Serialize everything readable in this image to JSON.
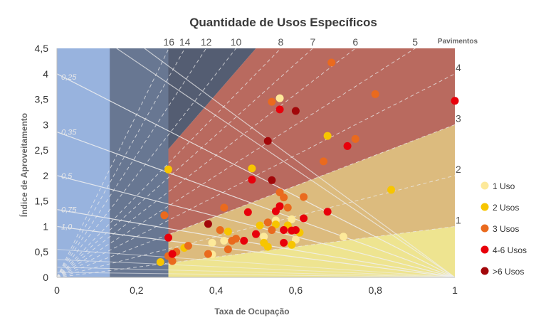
{
  "chart_data": {
    "type": "scatter",
    "title": "Quantidade de Usos Específicos",
    "xlabel": "Taxa de Ocupação",
    "ylabel": "Índice de Aproveitamento",
    "xlim": [
      0,
      1
    ],
    "ylim": [
      0,
      4.5
    ],
    "x_ticks": [
      "0",
      "0,2",
      "0,4",
      "0,6",
      "0,8",
      "1"
    ],
    "y_ticks": [
      "0",
      "0,5",
      "1",
      "1,5",
      "2",
      "2,5",
      "3",
      "3,5",
      "4",
      "4,5"
    ],
    "x_tick_values": [
      0,
      0.2,
      0.4,
      0.6,
      0.8,
      1
    ],
    "y_tick_values": [
      0,
      0.5,
      1,
      1.5,
      2,
      2.5,
      3,
      3.5,
      4,
      4.5
    ],
    "grid": false,
    "legend_position": "right",
    "zones": [
      {
        "x0": 0,
        "x1": 0.133,
        "color": "#98b3de"
      },
      {
        "x0": 0.133,
        "x1": 0.28,
        "color": "#687792"
      }
    ],
    "slope_bands": [
      {
        "from": 0,
        "to": 1,
        "color": "#eee490"
      },
      {
        "from": 1,
        "to": 3,
        "color": "#dcbb7e"
      },
      {
        "from": 3,
        "to": 9,
        "color": "#b96a5f"
      },
      {
        "from": 9,
        "to": 99,
        "color": "#545d72"
      }
    ],
    "pavimentos_title": "Pavimentos",
    "pavimentos_top": [
      {
        "label": "16",
        "value": 16
      },
      {
        "label": "14",
        "value": 14
      },
      {
        "label": "12",
        "value": 12
      },
      {
        "label": "10",
        "value": 10
      },
      {
        "label": "8",
        "value": 8
      },
      {
        "label": "7",
        "value": 7
      },
      {
        "label": "6",
        "value": 6
      },
      {
        "label": "5",
        "value": 5
      }
    ],
    "pavimentos_right": [
      {
        "label": "4",
        "value": 4
      },
      {
        "label": "3",
        "value": 3
      },
      {
        "label": "2",
        "value": 2
      },
      {
        "label": "1",
        "value": 1
      }
    ],
    "dashed_floor_lines": [
      1,
      2,
      3,
      4,
      5,
      6,
      7,
      8,
      10,
      12,
      14,
      16
    ],
    "coeff_lines": [
      {
        "label": "0,25",
        "value": 0.25
      },
      {
        "label": "0,35",
        "value": 0.35
      },
      {
        "label": "0,5",
        "value": 0.5
      },
      {
        "label": "0,75",
        "value": 0.75
      },
      {
        "label": "1,0",
        "value": 1.0
      }
    ],
    "series": [
      {
        "name": "1 Uso",
        "color": "#fde99a",
        "points": [
          [
            0.56,
            3.52
          ],
          [
            0.39,
            0.68
          ],
          [
            0.42,
            0.72
          ],
          [
            0.52,
            0.8
          ],
          [
            0.58,
            0.97
          ],
          [
            0.59,
            1.14
          ],
          [
            0.55,
            1.12
          ],
          [
            0.6,
            0.74
          ],
          [
            0.72,
            0.8
          ],
          [
            0.39,
            0.45
          ],
          [
            0.57,
            0.68
          ]
        ]
      },
      {
        "name": "2 Usos",
        "color": "#f7c500",
        "points": [
          [
            0.28,
            2.12
          ],
          [
            0.26,
            0.3
          ],
          [
            0.32,
            0.58
          ],
          [
            0.43,
            0.9
          ],
          [
            0.49,
            2.14
          ],
          [
            0.51,
            1.02
          ],
          [
            0.52,
            0.68
          ],
          [
            0.55,
            1.04
          ],
          [
            0.58,
            1.02
          ],
          [
            0.61,
            0.88
          ],
          [
            0.68,
            2.78
          ],
          [
            0.84,
            1.72
          ],
          [
            0.53,
            0.6
          ],
          [
            0.59,
            0.64
          ]
        ]
      },
      {
        "name": "3 Usos",
        "color": "#ea6a1e",
        "points": [
          [
            0.69,
            4.22
          ],
          [
            0.54,
            3.45
          ],
          [
            0.27,
            1.22
          ],
          [
            0.28,
            0.42
          ],
          [
            0.3,
            0.5
          ],
          [
            0.33,
            0.62
          ],
          [
            0.38,
            0.46
          ],
          [
            0.41,
            0.93
          ],
          [
            0.42,
            1.37
          ],
          [
            0.43,
            0.55
          ],
          [
            0.44,
            0.72
          ],
          [
            0.45,
            0.76
          ],
          [
            0.53,
            1.08
          ],
          [
            0.56,
            1.67
          ],
          [
            0.57,
            1.57
          ],
          [
            0.58,
            1.37
          ],
          [
            0.62,
            1.58
          ],
          [
            0.67,
            2.28
          ],
          [
            0.75,
            2.72
          ],
          [
            0.8,
            3.6
          ],
          [
            0.29,
            0.32
          ],
          [
            0.54,
            0.93
          ]
        ]
      },
      {
        "name": "4-6 Usos",
        "color": "#e8000b",
        "points": [
          [
            0.56,
            3.3
          ],
          [
            0.49,
            1.92
          ],
          [
            0.48,
            1.28
          ],
          [
            0.5,
            0.85
          ],
          [
            0.55,
            1.3
          ],
          [
            0.56,
            1.4
          ],
          [
            0.57,
            0.93
          ],
          [
            0.6,
            0.93
          ],
          [
            0.62,
            1.16
          ],
          [
            0.68,
            1.29
          ],
          [
            0.73,
            2.58
          ],
          [
            1.0,
            3.47
          ],
          [
            0.28,
            0.78
          ],
          [
            0.29,
            0.46
          ],
          [
            0.47,
            0.72
          ],
          [
            0.59,
            0.92
          ],
          [
            0.57,
            0.68
          ]
        ]
      },
      {
        "name": ">6 Usos",
        "color": "#a2070a",
        "points": [
          [
            0.6,
            3.27
          ],
          [
            0.53,
            2.68
          ],
          [
            0.54,
            1.91
          ],
          [
            0.38,
            1.05
          ]
        ]
      }
    ]
  }
}
